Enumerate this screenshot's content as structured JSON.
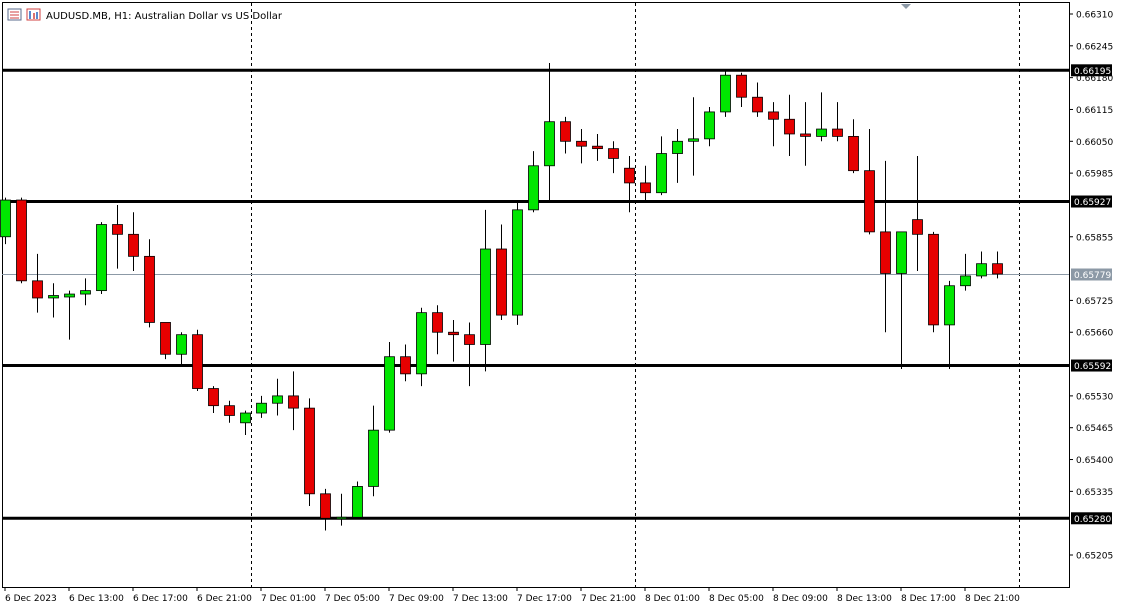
{
  "window": {
    "title": "AUDUSD.MB, H1:  Australian Dollar vs US Dollar",
    "icons": [
      "chart-type-icon",
      "indicators-icon"
    ]
  },
  "colors": {
    "bull": "#00e600",
    "bear": "#e60000",
    "wick": "#000000",
    "grid": "#000000",
    "bid_line": "#8c99a6",
    "bid_label_bg": "#8c99a6",
    "level_label_bg": "#000000"
  },
  "chart_data": {
    "type": "candlestick",
    "timeframe": "H1",
    "symbol": "AUDUSD.MB",
    "ylim": [
      0.6516,
      0.6633
    ],
    "y_ticks": [
      "0.66310",
      "0.66245",
      "0.66180",
      "0.66115",
      "0.66050",
      "0.65985",
      "0.65855",
      "0.65725",
      "0.65660",
      "0.65530",
      "0.65465",
      "0.65400",
      "0.65335",
      "0.65205"
    ],
    "x_labels": [
      "6 Dec 2023",
      "6 Dec 13:00",
      "6 Dec 17:00",
      "6 Dec 21:00",
      "7 Dec 01:00",
      "7 Dec 05:00",
      "7 Dec 09:00",
      "7 Dec 13:00",
      "7 Dec 17:00",
      "7 Dec 21:00",
      "8 Dec 01:00",
      "8 Dec 05:00",
      "8 Dec 09:00",
      "8 Dec 13:00",
      "8 Dec 17:00",
      "8 Dec 21:00"
    ],
    "x_label_candle_index": [
      0,
      4,
      8,
      12,
      16,
      20,
      24,
      28,
      32,
      36,
      40,
      44,
      48,
      52,
      56,
      60
    ],
    "day_separators_candle_index": [
      15,
      39,
      63
    ],
    "horizontal_levels": [
      {
        "value": 0.66195,
        "label": "0.66195"
      },
      {
        "value": 0.65927,
        "label": "0.65927"
      },
      {
        "value": 0.65592,
        "label": "0.65592"
      },
      {
        "value": 0.6528,
        "label": "0.65280"
      }
    ],
    "bid": {
      "value": 0.65779,
      "label": "0.65779"
    },
    "candles": [
      {
        "o": 0.65855,
        "h": 0.65935,
        "l": 0.6584,
        "c": 0.6593
      },
      {
        "o": 0.6593,
        "h": 0.65935,
        "l": 0.6576,
        "c": 0.65765
      },
      {
        "o": 0.65765,
        "h": 0.6582,
        "l": 0.657,
        "c": 0.6573
      },
      {
        "o": 0.6573,
        "h": 0.6576,
        "l": 0.6569,
        "c": 0.65735
      },
      {
        "o": 0.65732,
        "h": 0.65745,
        "l": 0.65645,
        "c": 0.65738
      },
      {
        "o": 0.65738,
        "h": 0.6577,
        "l": 0.65715,
        "c": 0.65745
      },
      {
        "o": 0.65745,
        "h": 0.65885,
        "l": 0.65738,
        "c": 0.6588
      },
      {
        "o": 0.6588,
        "h": 0.6592,
        "l": 0.6579,
        "c": 0.6586
      },
      {
        "o": 0.6586,
        "h": 0.65905,
        "l": 0.65785,
        "c": 0.65815
      },
      {
        "o": 0.65815,
        "h": 0.6585,
        "l": 0.6567,
        "c": 0.6568
      },
      {
        "o": 0.6568,
        "h": 0.6568,
        "l": 0.65605,
        "c": 0.65615
      },
      {
        "o": 0.65615,
        "h": 0.6566,
        "l": 0.6559,
        "c": 0.65655
      },
      {
        "o": 0.65655,
        "h": 0.65665,
        "l": 0.6554,
        "c": 0.65545
      },
      {
        "o": 0.65545,
        "h": 0.6555,
        "l": 0.65495,
        "c": 0.6551
      },
      {
        "o": 0.6551,
        "h": 0.6552,
        "l": 0.65475,
        "c": 0.6549
      },
      {
        "o": 0.65475,
        "h": 0.655,
        "l": 0.6545,
        "c": 0.65495
      },
      {
        "o": 0.65495,
        "h": 0.6553,
        "l": 0.65485,
        "c": 0.65515
      },
      {
        "o": 0.65515,
        "h": 0.65565,
        "l": 0.6549,
        "c": 0.6553
      },
      {
        "o": 0.6553,
        "h": 0.6558,
        "l": 0.6546,
        "c": 0.65505
      },
      {
        "o": 0.65505,
        "h": 0.65525,
        "l": 0.65305,
        "c": 0.6533
      },
      {
        "o": 0.6533,
        "h": 0.6534,
        "l": 0.65255,
        "c": 0.6528
      },
      {
        "o": 0.6528,
        "h": 0.6533,
        "l": 0.65265,
        "c": 0.65282
      },
      {
        "o": 0.65282,
        "h": 0.65355,
        "l": 0.6528,
        "c": 0.65345
      },
      {
        "o": 0.65345,
        "h": 0.6551,
        "l": 0.65325,
        "c": 0.6546
      },
      {
        "o": 0.6546,
        "h": 0.6564,
        "l": 0.65455,
        "c": 0.6561
      },
      {
        "o": 0.6561,
        "h": 0.65635,
        "l": 0.6556,
        "c": 0.65575
      },
      {
        "o": 0.65575,
        "h": 0.6571,
        "l": 0.6555,
        "c": 0.657
      },
      {
        "o": 0.657,
        "h": 0.65715,
        "l": 0.65615,
        "c": 0.6566
      },
      {
        "o": 0.6566,
        "h": 0.65685,
        "l": 0.656,
        "c": 0.65655
      },
      {
        "o": 0.65655,
        "h": 0.6568,
        "l": 0.6555,
        "c": 0.65635
      },
      {
        "o": 0.65635,
        "h": 0.6591,
        "l": 0.6558,
        "c": 0.6583
      },
      {
        "o": 0.6583,
        "h": 0.6588,
        "l": 0.65685,
        "c": 0.65695
      },
      {
        "o": 0.65695,
        "h": 0.65925,
        "l": 0.65675,
        "c": 0.6591
      },
      {
        "o": 0.6591,
        "h": 0.6603,
        "l": 0.65905,
        "c": 0.66
      },
      {
        "o": 0.66,
        "h": 0.6621,
        "l": 0.65925,
        "c": 0.6609
      },
      {
        "o": 0.6609,
        "h": 0.661,
        "l": 0.66025,
        "c": 0.6605
      },
      {
        "o": 0.6605,
        "h": 0.66075,
        "l": 0.66005,
        "c": 0.6604
      },
      {
        "o": 0.6604,
        "h": 0.66065,
        "l": 0.6601,
        "c": 0.66035
      },
      {
        "o": 0.66035,
        "h": 0.6605,
        "l": 0.65985,
        "c": 0.66015
      },
      {
        "o": 0.65995,
        "h": 0.6602,
        "l": 0.65905,
        "c": 0.65965
      },
      {
        "o": 0.65965,
        "h": 0.66,
        "l": 0.6593,
        "c": 0.65945
      },
      {
        "o": 0.65945,
        "h": 0.6606,
        "l": 0.6594,
        "c": 0.66025
      },
      {
        "o": 0.66025,
        "h": 0.66075,
        "l": 0.65965,
        "c": 0.6605
      },
      {
        "o": 0.6605,
        "h": 0.6614,
        "l": 0.6598,
        "c": 0.66055
      },
      {
        "o": 0.66055,
        "h": 0.6612,
        "l": 0.6604,
        "c": 0.6611
      },
      {
        "o": 0.6611,
        "h": 0.66195,
        "l": 0.661,
        "c": 0.66185
      },
      {
        "o": 0.66185,
        "h": 0.6619,
        "l": 0.6612,
        "c": 0.6614
      },
      {
        "o": 0.6614,
        "h": 0.6617,
        "l": 0.661,
        "c": 0.6611
      },
      {
        "o": 0.6611,
        "h": 0.6613,
        "l": 0.6604,
        "c": 0.66095
      },
      {
        "o": 0.66095,
        "h": 0.66145,
        "l": 0.6602,
        "c": 0.66065
      },
      {
        "o": 0.66065,
        "h": 0.6613,
        "l": 0.66,
        "c": 0.6606
      },
      {
        "o": 0.6606,
        "h": 0.6615,
        "l": 0.6605,
        "c": 0.66075
      },
      {
        "o": 0.66075,
        "h": 0.6613,
        "l": 0.6605,
        "c": 0.6606
      },
      {
        "o": 0.6606,
        "h": 0.66095,
        "l": 0.65985,
        "c": 0.6599
      },
      {
        "o": 0.6599,
        "h": 0.66075,
        "l": 0.6586,
        "c": 0.65865
      },
      {
        "o": 0.65865,
        "h": 0.6601,
        "l": 0.6566,
        "c": 0.6578
      },
      {
        "o": 0.6578,
        "h": 0.65865,
        "l": 0.65585,
        "c": 0.65865
      },
      {
        "o": 0.6589,
        "h": 0.6602,
        "l": 0.65785,
        "c": 0.6586
      },
      {
        "o": 0.6586,
        "h": 0.65865,
        "l": 0.6566,
        "c": 0.65675
      },
      {
        "o": 0.65675,
        "h": 0.65765,
        "l": 0.65585,
        "c": 0.65755
      },
      {
        "o": 0.65755,
        "h": 0.6582,
        "l": 0.65745,
        "c": 0.65775
      },
      {
        "o": 0.65775,
        "h": 0.65825,
        "l": 0.6577,
        "c": 0.658
      },
      {
        "o": 0.658,
        "h": 0.65825,
        "l": 0.6577,
        "c": 0.65779
      }
    ]
  }
}
